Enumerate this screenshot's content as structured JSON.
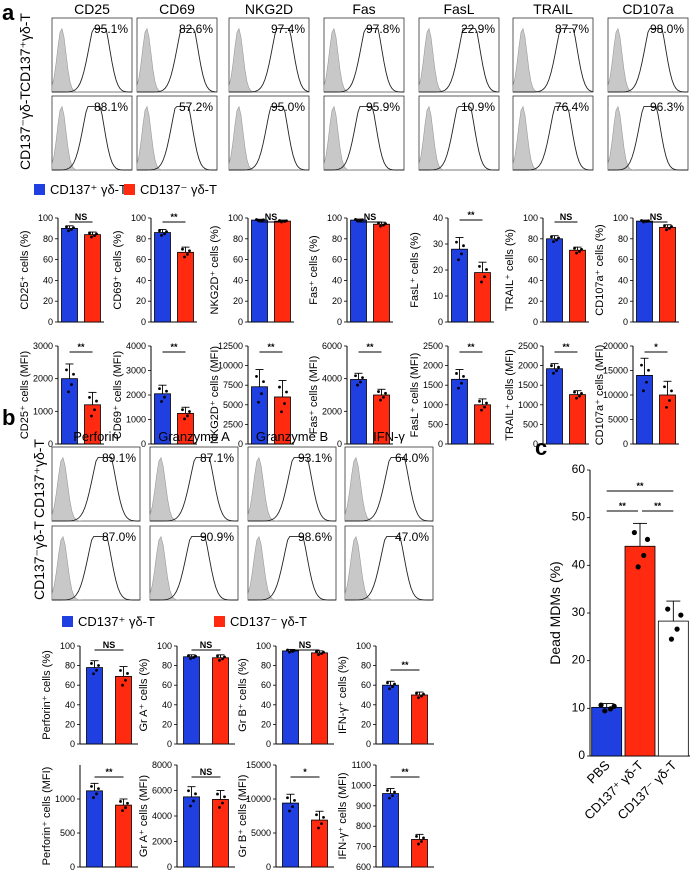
{
  "panel_labels": {
    "a": "a",
    "b": "b",
    "c": "c"
  },
  "legend": {
    "pos": "CD137⁺ γδ-T",
    "neg": "CD137⁻ γδ-T",
    "pos_color": "#1f3fe0",
    "neg_color": "#ff2a10"
  },
  "row_labels": {
    "pos": "CD137⁺γδ-T",
    "neg": "CD137⁻γδ-T"
  },
  "flow_a": [
    {
      "marker": "CD25",
      "pos_pct": "95.1%",
      "neg_pct": "88.1%"
    },
    {
      "marker": "CD69",
      "pos_pct": "82.6%",
      "neg_pct": "57.2%"
    },
    {
      "marker": "NKG2D",
      "pos_pct": "97.4%",
      "neg_pct": "95.0%"
    },
    {
      "marker": "Fas",
      "pos_pct": "97.8%",
      "neg_pct": "95.9%"
    },
    {
      "marker": "FasL",
      "pos_pct": "22.9%",
      "neg_pct": "10.9%"
    },
    {
      "marker": "TRAIL",
      "pos_pct": "87.7%",
      "neg_pct": "76.4%"
    },
    {
      "marker": "CD107a",
      "pos_pct": "98.0%",
      "neg_pct": "96.3%"
    }
  ],
  "flow_b": [
    {
      "marker": "Perforin",
      "pos_pct": "89.1%",
      "neg_pct": "87.0%"
    },
    {
      "marker": "Granzyme A",
      "pos_pct": "87.1%",
      "neg_pct": "90.9%"
    },
    {
      "marker": "Granzyme B",
      "pos_pct": "93.1%",
      "neg_pct": "98.6%"
    },
    {
      "marker": "IFN-γ",
      "pos_pct": "64.0%",
      "neg_pct": "47.0%"
    }
  ],
  "chart_data": [
    {
      "type": "bar",
      "id": "a-pct-CD25",
      "ylabel": "CD25⁺ cells (%)",
      "ylim": [
        0,
        100
      ],
      "ticks": [
        0,
        20,
        40,
        60,
        80,
        100
      ],
      "categories": [
        "CD137⁺ γδ-T",
        "CD137⁻ γδ-T"
      ],
      "values": [
        90,
        84
      ],
      "errors": [
        2.5,
        2.5
      ],
      "sig": "NS"
    },
    {
      "type": "bar",
      "id": "a-pct-CD69",
      "ylabel": "CD69⁺ cells (%)",
      "ylim": [
        0,
        100
      ],
      "ticks": [
        0,
        20,
        40,
        60,
        80,
        100
      ],
      "categories": [
        "CD137⁺ γδ-T",
        "CD137⁻ γδ-T"
      ],
      "values": [
        86,
        67
      ],
      "errors": [
        3,
        5
      ],
      "sig": "**"
    },
    {
      "type": "bar",
      "id": "a-pct-NKG2D",
      "ylabel": "NKG2D⁺ cells (%)",
      "ylim": [
        0,
        100
      ],
      "ticks": [
        0,
        20,
        40,
        60,
        80,
        100
      ],
      "categories": [
        "CD137⁺ γδ-T",
        "CD137⁻ γδ-T"
      ],
      "values": [
        98,
        97
      ],
      "errors": [
        0.8,
        1
      ],
      "sig": "NS"
    },
    {
      "type": "bar",
      "id": "a-pct-Fas",
      "ylabel": "Fas⁺ cells (%)",
      "ylim": [
        0,
        100
      ],
      "ticks": [
        0,
        20,
        40,
        60,
        80,
        100
      ],
      "categories": [
        "CD137⁺ γδ-T",
        "CD137⁻ γδ-T"
      ],
      "values": [
        98,
        94
      ],
      "errors": [
        1,
        2
      ],
      "sig": "NS"
    },
    {
      "type": "bar",
      "id": "a-pct-FasL",
      "ylabel": "FasL⁺ cells (%)",
      "ylim": [
        0,
        40
      ],
      "ticks": [
        0,
        10,
        20,
        30,
        40
      ],
      "categories": [
        "CD137⁺ γδ-T",
        "CD137⁻ γδ-T"
      ],
      "values": [
        28,
        19
      ],
      "errors": [
        4.5,
        4
      ],
      "sig": "**"
    },
    {
      "type": "bar",
      "id": "a-pct-TRAIL",
      "ylabel": "TRAIL⁺ cells (%)",
      "ylim": [
        0,
        100
      ],
      "ticks": [
        0,
        20,
        40,
        60,
        80,
        100
      ],
      "categories": [
        "CD137⁺ γδ-T",
        "CD137⁻ γδ-T"
      ],
      "values": [
        80,
        69
      ],
      "errors": [
        3,
        3
      ],
      "sig": "NS"
    },
    {
      "type": "bar",
      "id": "a-pct-CD107a",
      "ylabel": "CD107a⁺ cells (%)",
      "ylim": [
        0,
        100
      ],
      "ticks": [
        0,
        20,
        40,
        60,
        80,
        100
      ],
      "categories": [
        "CD137⁺ γδ-T",
        "CD137⁻ γδ-T"
      ],
      "values": [
        97,
        91
      ],
      "errors": [
        1,
        2.5
      ],
      "sig": "NS"
    },
    {
      "type": "bar",
      "id": "a-mfi-CD25",
      "ylabel": "CD25⁺ cells (MFI)",
      "ylim": [
        0,
        3000
      ],
      "ticks": [
        0,
        1000,
        2000,
        3000
      ],
      "categories": [
        "CD137⁺ γδ-T",
        "CD137⁻ γδ-T"
      ],
      "values": [
        2000,
        1200
      ],
      "errors": [
        450,
        380
      ],
      "sig": "**"
    },
    {
      "type": "bar",
      "id": "a-mfi-CD69",
      "ylabel": "CD69⁺ cells (MFI)",
      "ylim": [
        0,
        4000
      ],
      "ticks": [
        0,
        1000,
        2000,
        3000,
        4000
      ],
      "categories": [
        "CD137⁺ γδ-T",
        "CD137⁻ γδ-T"
      ],
      "values": [
        2050,
        1250
      ],
      "errors": [
        350,
        250
      ],
      "sig": "**"
    },
    {
      "type": "bar",
      "id": "a-mfi-NKG2D",
      "ylabel": "NKG2D⁺ cells (MFI)",
      "ylim": [
        0,
        12500
      ],
      "ticks": [
        0,
        2500,
        5000,
        7500,
        10000,
        12500
      ],
      "categories": [
        "CD137⁺ γδ-T",
        "CD137⁻ γδ-T"
      ],
      "values": [
        7300,
        6000
      ],
      "errors": [
        2200,
        2100
      ],
      "sig": "**"
    },
    {
      "type": "bar",
      "id": "a-mfi-Fas",
      "ylabel": "Fas⁺ cells (MFI)",
      "ylim": [
        0,
        6000
      ],
      "ticks": [
        0,
        2000,
        4000,
        6000
      ],
      "categories": [
        "CD137⁺ γδ-T",
        "CD137⁻ γδ-T"
      ],
      "values": [
        3950,
        3000
      ],
      "errors": [
        380,
        350
      ],
      "sig": "**"
    },
    {
      "type": "bar",
      "id": "a-mfi-FasL",
      "ylabel": "FasL⁺ cells (MFI)",
      "ylim": [
        0,
        2500
      ],
      "ticks": [
        0,
        500,
        1000,
        1500,
        2000,
        2500
      ],
      "categories": [
        "CD137⁺ γδ-T",
        "CD137⁻ γδ-T"
      ],
      "values": [
        1650,
        1000
      ],
      "errors": [
        250,
        150
      ],
      "sig": "**"
    },
    {
      "type": "bar",
      "id": "a-mfi-TRAIL",
      "ylabel": "TRAIL⁺ cells (MFI)",
      "ylim": [
        0,
        2500
      ],
      "ticks": [
        0,
        500,
        1000,
        1500,
        2000,
        2500
      ],
      "categories": [
        "CD137⁺ γδ-T",
        "CD137⁻ γδ-T"
      ],
      "values": [
        1920,
        1260
      ],
      "errors": [
        130,
        100
      ],
      "sig": "**"
    },
    {
      "type": "bar",
      "id": "a-mfi-CD107a",
      "ylabel": "CD107a⁺ cells (MFI)",
      "ylim": [
        0,
        20000
      ],
      "ticks": [
        0,
        5000,
        10000,
        15000,
        20000
      ],
      "categories": [
        "CD137⁺ γδ-T",
        "CD137⁻ γδ-T"
      ],
      "values": [
        14000,
        10000
      ],
      "errors": [
        3500,
        2800
      ],
      "sig": "*"
    },
    {
      "type": "bar",
      "id": "b-pct-Perforin",
      "ylabel": "Perforin⁺ cells (%)",
      "ylim": [
        0,
        100
      ],
      "ticks": [
        0,
        20,
        40,
        60,
        80,
        100
      ],
      "categories": [
        "CD137⁺ γδ-T",
        "CD137⁻ γδ-T"
      ],
      "values": [
        78,
        69
      ],
      "errors": [
        7,
        10
      ],
      "sig": "NS"
    },
    {
      "type": "bar",
      "id": "b-pct-GrA",
      "ylabel": "Gr A⁺ cells (%)",
      "ylim": [
        0,
        100
      ],
      "ticks": [
        0,
        20,
        40,
        60,
        80,
        100
      ],
      "categories": [
        "CD137⁺ γδ-T",
        "CD137⁻ γδ-T"
      ],
      "values": [
        89,
        88
      ],
      "errors": [
        2,
        3
      ],
      "sig": "NS"
    },
    {
      "type": "bar",
      "id": "b-pct-GrB",
      "ylabel": "Gr B⁺ cells (%)",
      "ylim": [
        0,
        100
      ],
      "ticks": [
        0,
        20,
        40,
        60,
        80,
        100
      ],
      "categories": [
        "CD137⁺ γδ-T",
        "CD137⁻ γδ-T"
      ],
      "values": [
        95,
        93
      ],
      "errors": [
        1.5,
        2
      ],
      "sig": "NS"
    },
    {
      "type": "bar",
      "id": "b-pct-IFNg",
      "ylabel": "IFN-γ⁺ cells (%)",
      "ylim": [
        0,
        100
      ],
      "ticks": [
        0,
        20,
        40,
        60,
        80,
        100
      ],
      "categories": [
        "CD137⁺ γδ-T",
        "CD137⁻ γδ-T"
      ],
      "values": [
        60,
        50
      ],
      "errors": [
        4,
        3
      ],
      "sig": "**"
    },
    {
      "type": "bar",
      "id": "b-mfi-Perforin",
      "ylabel": "Perforin⁺ cells (MFI)",
      "ylim": [
        0,
        1500
      ],
      "ticks": [
        0,
        500,
        1000
      ],
      "categories": [
        "CD137⁺ γδ-T",
        "CD137⁻ γδ-T"
      ],
      "values": [
        1120,
        910
      ],
      "errors": [
        110,
        90
      ],
      "sig": "**"
    },
    {
      "type": "bar",
      "id": "b-mfi-GrA",
      "ylabel": "Gr A⁺ cells (MFI)",
      "ylim": [
        0,
        8000
      ],
      "ticks": [
        0,
        2000,
        4000,
        6000,
        8000
      ],
      "categories": [
        "CD137⁺ γδ-T",
        "CD137⁻ γδ-T"
      ],
      "values": [
        5500,
        5300
      ],
      "errors": [
        800,
        700
      ],
      "sig": "NS"
    },
    {
      "type": "bar",
      "id": "b-mfi-GrB",
      "ylabel": "Gr B⁺ cells (MFI)",
      "ylim": [
        0,
        15000
      ],
      "ticks": [
        0,
        5000,
        10000,
        15000
      ],
      "categories": [
        "CD137⁺ γδ-T",
        "CD137⁻ γδ-T"
      ],
      "values": [
        9400,
        6900
      ],
      "errors": [
        1300,
        1300
      ],
      "sig": "*"
    },
    {
      "type": "bar",
      "id": "b-mfi-IFNg",
      "ylabel": "IFN-γ⁺ cells (MFI)",
      "ylim": [
        600,
        1100
      ],
      "ticks": [
        600,
        700,
        800,
        900,
        1000,
        1100
      ],
      "categories": [
        "CD137⁺ γδ-T",
        "CD137⁻ γδ-T"
      ],
      "values": [
        960,
        735
      ],
      "errors": [
        25,
        25
      ],
      "sig": "**"
    },
    {
      "type": "bar",
      "id": "c-dead",
      "ylabel": "Dead MDMs (%)",
      "ylim": [
        0,
        60
      ],
      "ticks": [
        0,
        10,
        20,
        30,
        40,
        50,
        60
      ],
      "categories": [
        "PBS",
        "CD137⁺ γδ-T",
        "CD137⁻ γδ-T"
      ],
      "values": [
        10.2,
        44,
        28.3
      ],
      "errors": [
        0.8,
        4.8,
        4.2
      ],
      "sig_pairs": [
        {
          "a": 0,
          "b": 1,
          "label": "**"
        },
        {
          "a": 1,
          "b": 2,
          "label": "**"
        },
        {
          "a": 0,
          "b": 2,
          "label": "**"
        }
      ]
    }
  ]
}
